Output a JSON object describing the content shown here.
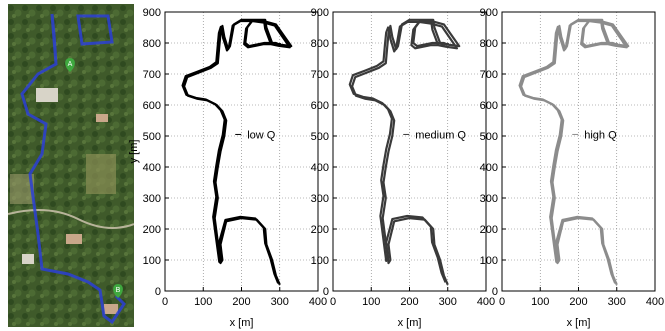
{
  "map": {
    "marker_a": "A",
    "marker_b": "B",
    "colors": {
      "route": "#2b3fd6",
      "marker": "#3fa83f"
    }
  },
  "chart_data": [
    {
      "type": "line",
      "xlabel": "x [m]",
      "ylabel": "y [m]",
      "xlim": [
        0,
        400
      ],
      "ylim": [
        0,
        900
      ],
      "xticks": [
        0,
        100,
        200,
        300,
        400
      ],
      "yticks": [
        0,
        100,
        200,
        300,
        400,
        500,
        600,
        700,
        800,
        900
      ],
      "grid": true,
      "legend": {
        "label": "low Q",
        "placement": "center-right"
      },
      "color": "#000000",
      "series": [
        {
          "x": [
            300,
            290,
            280,
            265,
            262,
            240,
            200,
            160,
            145,
            148,
            150,
            145,
            130,
            138,
            132,
            138,
            145,
            155,
            160,
            150,
            135,
            110,
            85,
            60,
            50,
            58,
            90,
            120,
            138,
            142,
            145,
            150,
            150,
            155,
            160,
            165,
            170,
            180,
            200,
            230,
            260,
            290,
            330,
            300,
            290,
            260,
            220,
            210,
            215,
            230,
            262,
            265,
            280,
            300,
            300
          ],
          "y": [
            20,
            50,
            100,
            150,
            200,
            230,
            235,
            225,
            150,
            120,
            100,
            90,
            235,
            300,
            350,
            400,
            450,
            500,
            550,
            580,
            600,
            615,
            620,
            630,
            660,
            690,
            705,
            720,
            735,
            790,
            830,
            855,
            855,
            820,
            800,
            780,
            790,
            860,
            875,
            875,
            870,
            860,
            790,
            795,
            800,
            800,
            790,
            800,
            850,
            875,
            875,
            850,
            800,
            795,
            800
          ]
        },
        {
          "x": [
            296,
            286,
            276,
            262,
            258,
            236,
            196,
            158,
            141,
            144,
            146,
            142,
            126,
            134,
            128,
            134,
            141,
            151,
            156,
            146,
            131,
            106,
            81,
            56,
            46,
            54,
            86,
            117,
            134,
            138,
            141,
            146,
            148,
            152,
            157,
            162,
            167,
            177,
            197,
            227,
            257,
            287,
            326,
            297,
            287,
            257,
            217,
            207,
            212,
            227,
            259,
            262,
            277,
            297,
            297
          ],
          "y": [
            25,
            55,
            104,
            154,
            204,
            234,
            239,
            229,
            154,
            124,
            104,
            94,
            239,
            304,
            354,
            404,
            454,
            504,
            553,
            583,
            603,
            618,
            623,
            633,
            663,
            693,
            708,
            723,
            738,
            793,
            832,
            852,
            850,
            816,
            796,
            776,
            786,
            856,
            871,
            871,
            866,
            856,
            786,
            791,
            796,
            796,
            786,
            796,
            846,
            871,
            871,
            846,
            796,
            791,
            796
          ]
        }
      ]
    },
    {
      "type": "line",
      "xlabel": "x [m]",
      "ylabel": "",
      "xlim": [
        0,
        400
      ],
      "ylim": [
        0,
        900
      ],
      "xticks": [
        0,
        100,
        200,
        300,
        400
      ],
      "yticks": [
        0,
        100,
        200,
        300,
        400,
        500,
        600,
        700,
        800,
        900
      ],
      "grid": true,
      "legend": {
        "label": "medium Q",
        "placement": "center-right"
      },
      "color": "#3a3a3a",
      "series": [
        {
          "x": [
            300,
            290,
            280,
            265,
            262,
            240,
            200,
            160,
            145,
            148,
            150,
            145,
            130,
            138,
            132,
            138,
            145,
            155,
            160,
            150,
            135,
            110,
            85,
            60,
            50,
            58,
            90,
            120,
            138,
            142,
            145,
            150,
            150,
            155,
            160,
            165,
            170,
            180,
            200,
            230,
            260,
            290,
            330,
            300,
            290,
            260,
            220,
            210,
            215,
            230,
            262,
            265,
            280,
            300,
            300
          ],
          "y": [
            20,
            50,
            100,
            150,
            200,
            230,
            235,
            225,
            150,
            120,
            100,
            90,
            235,
            300,
            350,
            400,
            450,
            500,
            550,
            580,
            600,
            615,
            620,
            630,
            660,
            690,
            705,
            720,
            735,
            790,
            830,
            855,
            855,
            820,
            800,
            780,
            790,
            860,
            875,
            875,
            870,
            860,
            790,
            795,
            800,
            800,
            790,
            800,
            850,
            875,
            875,
            850,
            800,
            795,
            800
          ]
        },
        {
          "x": [
            294,
            284,
            274,
            259,
            256,
            234,
            194,
            155,
            139,
            142,
            144,
            139,
            124,
            132,
            126,
            132,
            139,
            149,
            154,
            144,
            129,
            104,
            79,
            54,
            44,
            52,
            84,
            115,
            132,
            136,
            139,
            144,
            146,
            150,
            155,
            160,
            165,
            175,
            195,
            225,
            255,
            285,
            324,
            295,
            285,
            255,
            215,
            205,
            210,
            225,
            257,
            260,
            275,
            295,
            295
          ],
          "y": [
            28,
            58,
            107,
            157,
            207,
            237,
            242,
            232,
            157,
            127,
            107,
            97,
            242,
            307,
            357,
            407,
            457,
            507,
            556,
            586,
            606,
            621,
            626,
            636,
            666,
            696,
            711,
            726,
            741,
            796,
            834,
            850,
            848,
            813,
            793,
            773,
            783,
            853,
            868,
            868,
            863,
            853,
            783,
            788,
            793,
            793,
            783,
            793,
            843,
            868,
            868,
            843,
            793,
            788,
            793
          ]
        }
      ]
    },
    {
      "type": "line",
      "xlabel": "x [m]",
      "ylabel": "",
      "xlim": [
        0,
        400
      ],
      "ylim": [
        0,
        900
      ],
      "xticks": [
        0,
        100,
        200,
        300,
        400
      ],
      "yticks": [
        0,
        100,
        200,
        300,
        400,
        500,
        600,
        700,
        800,
        900
      ],
      "grid": true,
      "legend": {
        "label": "high Q",
        "placement": "center-right"
      },
      "color": "#8c8c8c",
      "series": [
        {
          "x": [
            300,
            290,
            280,
            265,
            262,
            240,
            200,
            160,
            145,
            148,
            150,
            145,
            130,
            138,
            132,
            138,
            145,
            155,
            160,
            150,
            135,
            110,
            85,
            60,
            50,
            58,
            90,
            120,
            138,
            142,
            145,
            150,
            150,
            155,
            160,
            165,
            170,
            180,
            200,
            230,
            260,
            290,
            330,
            300,
            290,
            260,
            220,
            210,
            215,
            230,
            262,
            265,
            280,
            300,
            300
          ],
          "y": [
            20,
            50,
            100,
            150,
            200,
            230,
            235,
            225,
            150,
            120,
            100,
            90,
            235,
            300,
            350,
            400,
            450,
            500,
            550,
            580,
            600,
            615,
            620,
            630,
            660,
            690,
            705,
            720,
            735,
            790,
            830,
            855,
            855,
            820,
            800,
            780,
            790,
            860,
            875,
            875,
            870,
            860,
            790,
            795,
            800,
            800,
            790,
            800,
            850,
            875,
            875,
            850,
            800,
            795,
            800
          ]
        },
        {
          "x": [
            296,
            286,
            276,
            262,
            258,
            236,
            196,
            158,
            141,
            144,
            146,
            142,
            126,
            134,
            128,
            134,
            141,
            151,
            156,
            146,
            131,
            106,
            81,
            56,
            46,
            54,
            86,
            117,
            134,
            138,
            141,
            146,
            148,
            152,
            157,
            162,
            167,
            177,
            197,
            227,
            257,
            287,
            326,
            297,
            287,
            257,
            217,
            207,
            212,
            227,
            259,
            262,
            277,
            297,
            297
          ],
          "y": [
            25,
            55,
            104,
            154,
            204,
            234,
            239,
            229,
            154,
            124,
            104,
            94,
            239,
            304,
            354,
            404,
            454,
            504,
            553,
            583,
            603,
            618,
            623,
            633,
            663,
            693,
            708,
            723,
            738,
            793,
            832,
            852,
            850,
            816,
            796,
            776,
            786,
            856,
            871,
            871,
            866,
            856,
            786,
            791,
            796,
            796,
            786,
            796,
            846,
            871,
            871,
            846,
            796,
            791,
            796
          ]
        }
      ]
    }
  ]
}
